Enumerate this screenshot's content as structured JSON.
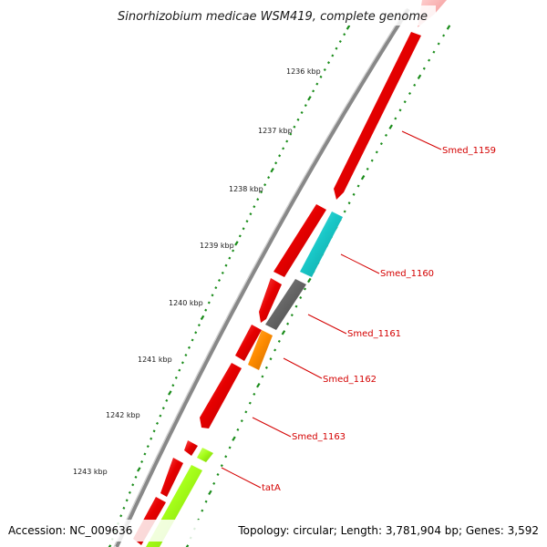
{
  "title": "Sinorhizobium medicae WSM419, complete genome",
  "footer": {
    "accession": "Accession: NC_009636",
    "summary": "Topology: circular; Length: 3,781,904 bp; Genes: 3,592"
  },
  "scale_labels": [
    "1236 kbp",
    "1237 kbp",
    "1238 kbp",
    "1239 kbp",
    "1240 kbp",
    "1241 kbp",
    "1242 kbp",
    "1243 kbp"
  ],
  "gene_labels": [
    "Smed_1159",
    "Smed_1160",
    "Smed_1161",
    "Smed_1162",
    "Smed_1163",
    "tatA"
  ],
  "colors": {
    "red": "#e60000",
    "cyan": "#19c8c8",
    "gray": "#666666",
    "orange": "#ff8c00",
    "lime": "#a6ff1a",
    "pink": "#f4aaaa",
    "backbone": "#888888",
    "tick_green": "#1a8c1a",
    "label_red": "#d40000"
  }
}
